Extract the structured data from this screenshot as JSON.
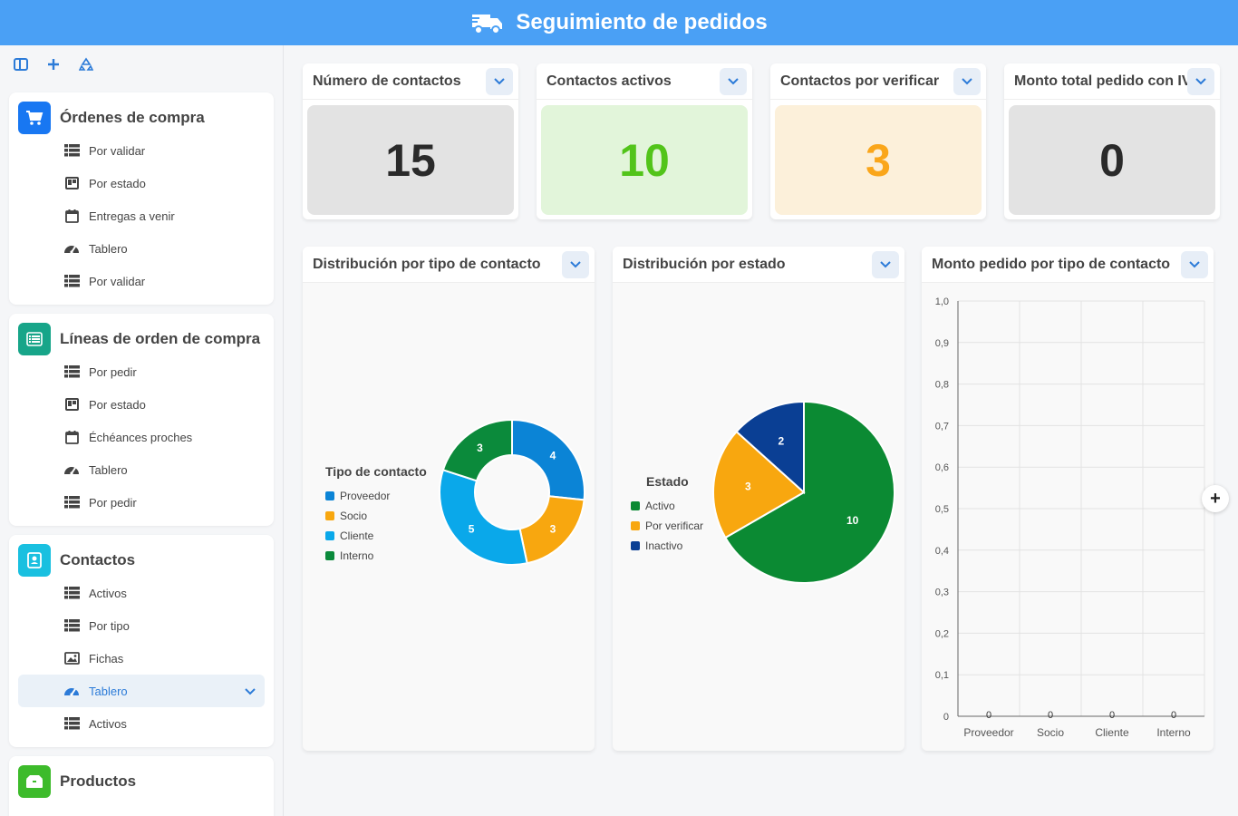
{
  "header": {
    "title": "Seguimiento de pedidos"
  },
  "sidebar": {
    "groups": [
      {
        "title": "Órdenes de compra",
        "color": "#1877f2",
        "items": [
          {
            "label": "Por validar",
            "icon": "table-icon"
          },
          {
            "label": "Por estado",
            "icon": "kanban-icon"
          },
          {
            "label": "Entregas a venir",
            "icon": "calendar-icon"
          },
          {
            "label": "Tablero",
            "icon": "dashboard-icon"
          },
          {
            "label": "Por validar",
            "icon": "table-icon"
          }
        ]
      },
      {
        "title": "Líneas de orden de compra",
        "color": "#17a589",
        "items": [
          {
            "label": "Por pedir",
            "icon": "table-icon"
          },
          {
            "label": "Por estado",
            "icon": "kanban-icon"
          },
          {
            "label": "Échéances proches",
            "icon": "calendar-icon"
          },
          {
            "label": "Tablero",
            "icon": "dashboard-icon"
          },
          {
            "label": "Por pedir",
            "icon": "table-icon"
          }
        ]
      },
      {
        "title": "Contactos",
        "color": "#19c0e0",
        "items": [
          {
            "label": "Activos",
            "icon": "table-icon"
          },
          {
            "label": "Por tipo",
            "icon": "table-icon"
          },
          {
            "label": "Fichas",
            "icon": "image-icon"
          },
          {
            "label": "Tablero",
            "icon": "dashboard-icon",
            "active": true
          },
          {
            "label": "Activos",
            "icon": "table-icon"
          }
        ]
      },
      {
        "title": "Productos",
        "color": "#3dbb2b",
        "items": []
      }
    ]
  },
  "kpis": [
    {
      "title": "Número de contactos",
      "value": "15",
      "bg": "#e3e3e3",
      "color": "#2a2a2a"
    },
    {
      "title": "Contactos activos",
      "value": "10",
      "bg": "#e2f5da",
      "color": "#52c41a"
    },
    {
      "title": "Contactos por verificar",
      "value": "3",
      "bg": "#fcf0da",
      "color": "#faa61a"
    },
    {
      "title": "Monto total pedido con IVA",
      "value": "0",
      "bg": "#e3e3e3",
      "color": "#2a2a2a"
    }
  ],
  "charts": {
    "donut": {
      "title": "Distribución por tipo de contacto",
      "legend_title": "Tipo de contacto"
    },
    "pie": {
      "title": "Distribución por estado",
      "legend_title": "Estado"
    },
    "bar": {
      "title": "Monto pedido por tipo de contacto"
    }
  },
  "chart_data": [
    {
      "type": "pie",
      "subtype": "donut",
      "categories": [
        "Proveedor",
        "Socio",
        "Cliente",
        "Interno"
      ],
      "values": [
        4,
        3,
        5,
        3
      ],
      "colors": [
        "#0b84d6",
        "#f8a70f",
        "#0aa8ea",
        "#0b8a3b"
      ],
      "legend": "left"
    },
    {
      "type": "pie",
      "categories": [
        "Activo",
        "Por verificar",
        "Inactivo"
      ],
      "values": [
        10,
        3,
        2
      ],
      "colors": [
        "#0b8a33",
        "#f8a70f",
        "#0a3f94"
      ],
      "legend": "left"
    },
    {
      "type": "bar",
      "categories": [
        "Proveedor",
        "Socio",
        "Cliente",
        "Interno"
      ],
      "values": [
        0,
        0,
        0,
        0
      ],
      "ylim": [
        0,
        1
      ],
      "yticks": [
        "0",
        "0,1",
        "0,2",
        "0,3",
        "0,4",
        "0,5",
        "0,6",
        "0,7",
        "0,8",
        "0,9",
        "1,0"
      ],
      "grid": true
    }
  ]
}
